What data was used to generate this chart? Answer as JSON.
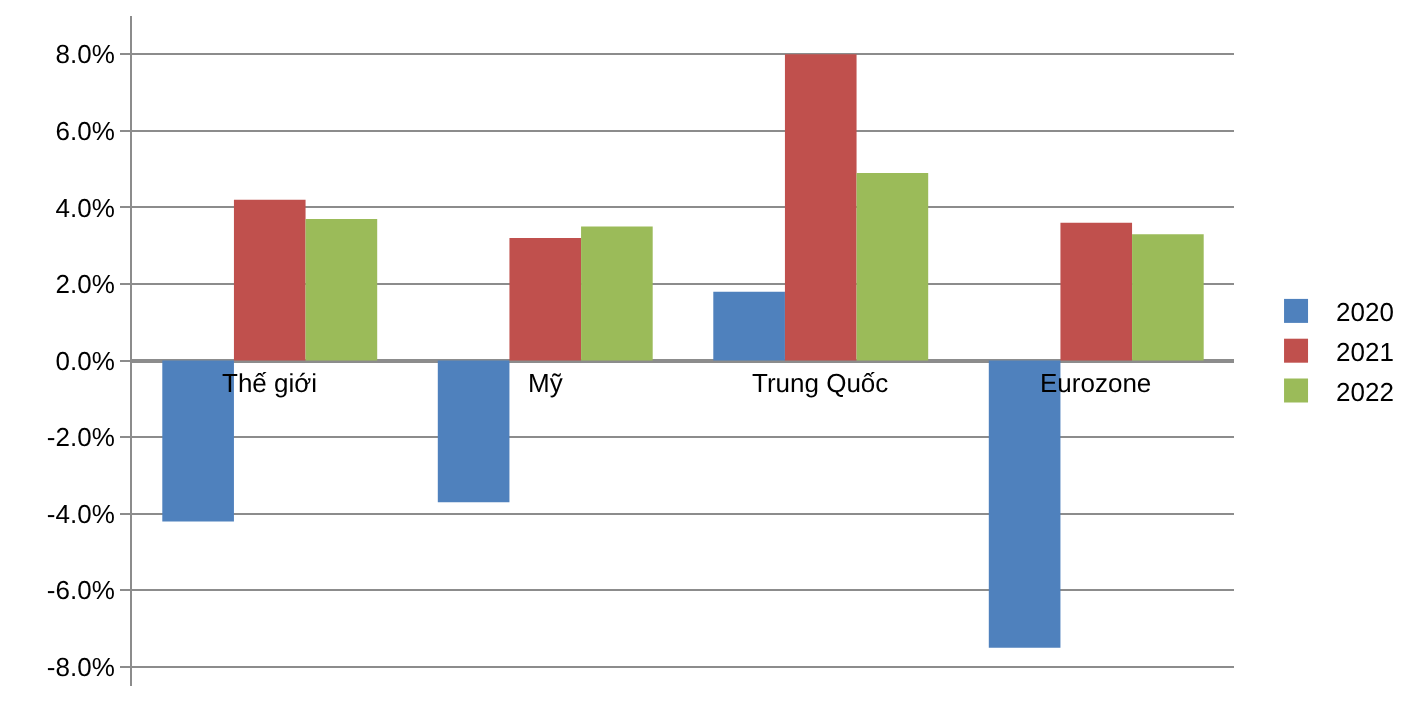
{
  "chart_data": {
    "type": "bar",
    "categories": [
      "Thế giới",
      "Mỹ",
      "Trung Quốc",
      "Eurozone"
    ],
    "series": [
      {
        "name": "2020",
        "color": "#4f81bd",
        "values": [
          -4.2,
          -3.7,
          1.8,
          -7.5
        ]
      },
      {
        "name": "2021",
        "color": "#c0504d",
        "values": [
          4.2,
          3.2,
          8.0,
          3.6
        ]
      },
      {
        "name": "2022",
        "color": "#9bbb59",
        "values": [
          3.7,
          3.5,
          4.9,
          3.3
        ]
      }
    ],
    "ylim": [
      -8.5,
      9
    ],
    "yticks": [
      {
        "value": -8,
        "label": "-8.0%"
      },
      {
        "value": -6,
        "label": "-6.0%"
      },
      {
        "value": -4,
        "label": "-4.0%"
      },
      {
        "value": -2,
        "label": "-2.0%"
      },
      {
        "value": 0,
        "label": "0.0%"
      },
      {
        "value": 2,
        "label": "2.0%"
      },
      {
        "value": 4,
        "label": "4.0%"
      },
      {
        "value": 6,
        "label": "6.0%"
      },
      {
        "value": 8,
        "label": "8.0%"
      }
    ],
    "grid": "y",
    "legend": "right"
  }
}
